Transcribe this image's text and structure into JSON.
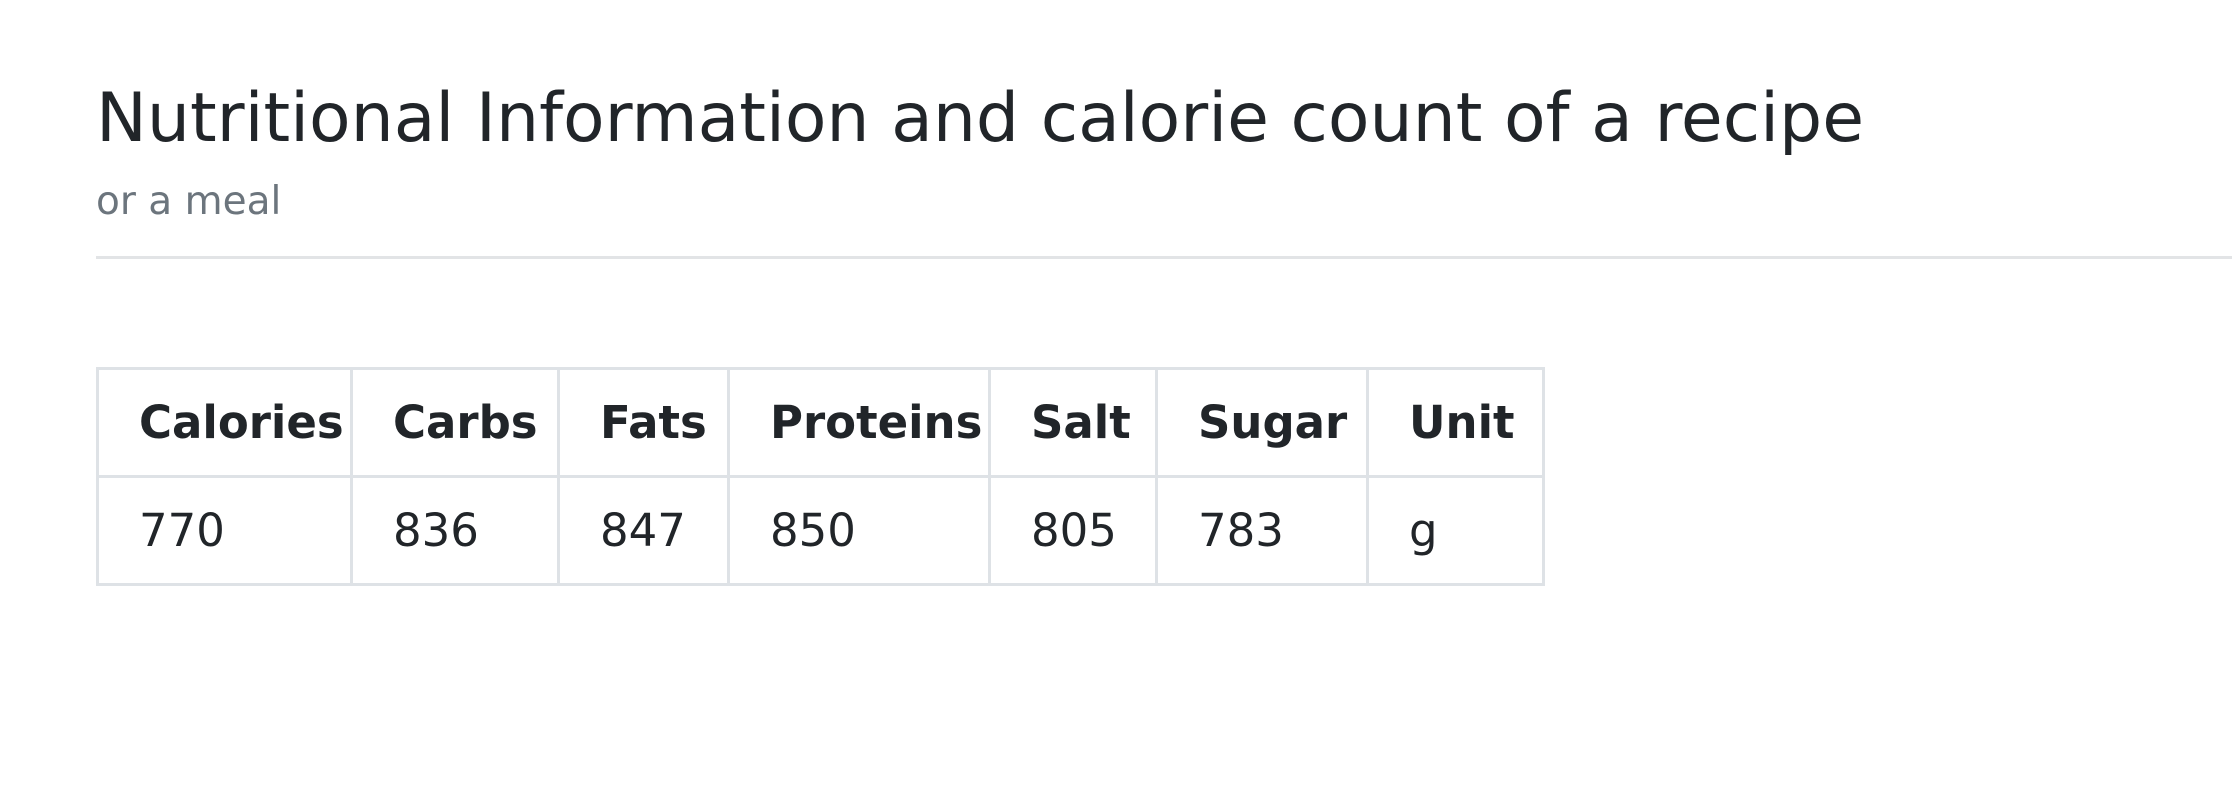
{
  "header": {
    "title": "Nutritional Information and calorie count of a recipe",
    "subtitle": "or a meal"
  },
  "table": {
    "columns": [
      "Calories",
      "Carbs",
      "Fats",
      "Proteins",
      "Salt",
      "Sugar",
      "Unit"
    ],
    "rows": [
      [
        "770",
        "836",
        "847",
        "850",
        "805",
        "783",
        "g"
      ]
    ]
  },
  "colors": {
    "text": "#212529",
    "muted_text": "#6c757d",
    "border": "#dee2e6"
  }
}
